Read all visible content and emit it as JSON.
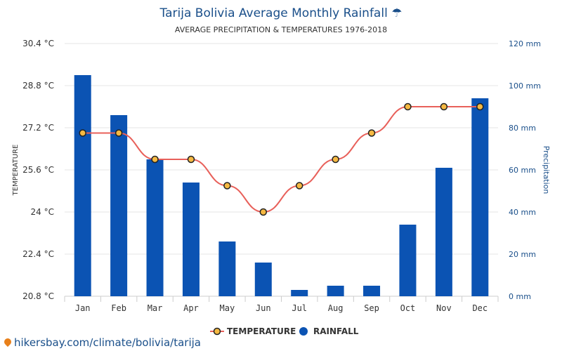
{
  "chart_data": {
    "type": "bar+line",
    "title": "Tarija Bolivia Average Monthly Rainfall ☂",
    "subtitle": "AVERAGE PRECIPITATION & TEMPERATURES 1976-2018",
    "categories": [
      "Jan",
      "Feb",
      "Mar",
      "Apr",
      "May",
      "Jun",
      "Jul",
      "Aug",
      "Sep",
      "Oct",
      "Nov",
      "Dec"
    ],
    "left_axis": {
      "label": "TEMPERATURE",
      "ylim": [
        20.8,
        30.4
      ],
      "ticks": [
        20.8,
        22.4,
        24,
        25.6,
        27.2,
        28.8,
        30.4
      ],
      "tick_labels": [
        "20.8 °C",
        "22.4 °C",
        "24 °C",
        "25.6 °C",
        "27.2 °C",
        "28.8 °C",
        "30.4 °C"
      ]
    },
    "right_axis": {
      "label": "Precipitation",
      "ylim": [
        0,
        120
      ],
      "ticks": [
        0,
        20,
        40,
        60,
        80,
        100,
        120
      ],
      "tick_labels": [
        "0 mm",
        "20 mm",
        "40 mm",
        "60 mm",
        "80 mm",
        "100 mm",
        "120 mm"
      ]
    },
    "grid": true,
    "legend_position": "bottom",
    "series": [
      {
        "name": "TEMPERATURE",
        "type": "line",
        "axis": "left",
        "color": "#e8605a",
        "marker_color": "#f5b942",
        "values": [
          27.0,
          27.0,
          26.0,
          26.0,
          25.0,
          24.0,
          25.0,
          26.0,
          27.0,
          28.0,
          28.0,
          28.0
        ]
      },
      {
        "name": "RAINFALL",
        "type": "bar",
        "axis": "right",
        "color": "#0b53b3",
        "values": [
          105,
          86,
          65,
          54,
          26,
          16,
          3,
          5,
          5,
          34,
          61,
          94
        ]
      }
    ]
  },
  "footer": {
    "link_text": "hikersbay.com/climate/bolivia/tarija"
  }
}
